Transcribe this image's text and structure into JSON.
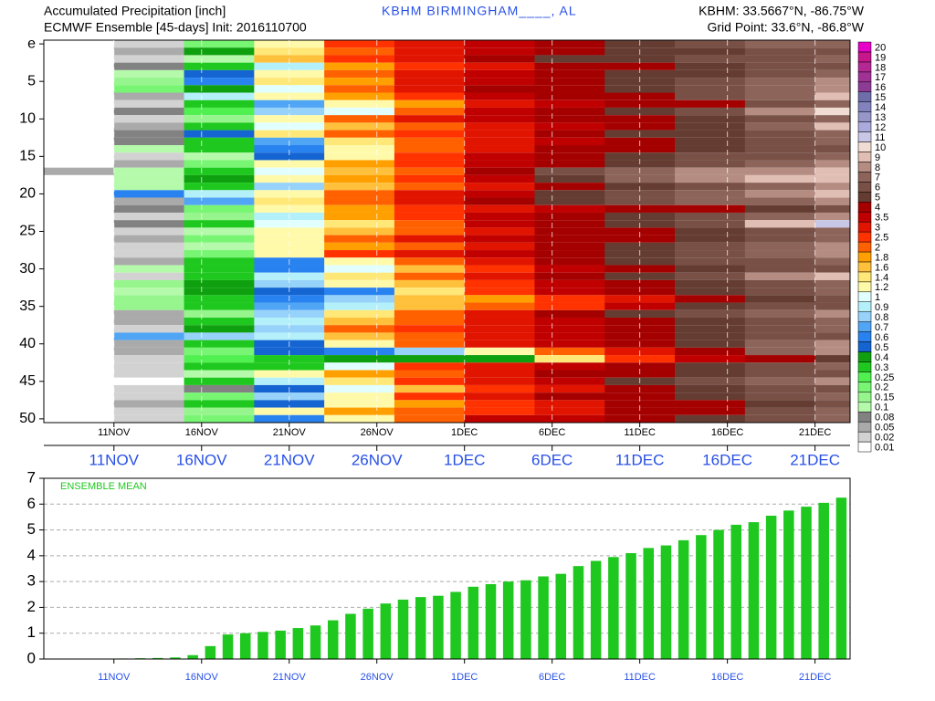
{
  "chart_data": [
    {
      "type": "heatmap",
      "title": "Accumulated Precipitation [inch]",
      "subtitle": "ECMWF Ensemble [45-days] Init: 2016110700",
      "station": "KBHM  BIRMINGHAM____, AL",
      "location": "KBHM: 33.5667°N, -86.75°W",
      "grid_point": "Grid Point: 33.6°N, -86.8°W",
      "xlim": [
        0,
        46
      ],
      "xticks": [
        {
          "value": 4,
          "label": "11NOV"
        },
        {
          "value": 9,
          "label": "16NOV"
        },
        {
          "value": 14,
          "label": "21NOV"
        },
        {
          "value": 19,
          "label": "26NOV"
        },
        {
          "value": 24,
          "label": "1DEC"
        },
        {
          "value": 29,
          "label": "6DEC"
        },
        {
          "value": 34,
          "label": "11DEC"
        },
        {
          "value": 39,
          "label": "16DEC"
        },
        {
          "value": 44,
          "label": "21DEC"
        }
      ],
      "yticks": [
        {
          "value": 0,
          "label": "e"
        },
        5,
        10,
        15,
        20,
        25,
        30,
        35,
        40,
        45,
        50
      ],
      "x": [
        0,
        4,
        8,
        12,
        16,
        20,
        24,
        28,
        32,
        36,
        40,
        44
      ],
      "values": [
        [
          0,
          0.02,
          0.2,
          1.2,
          2.6,
          3.2,
          3.8,
          4.5,
          5.5,
          6.5,
          7,
          7.5
        ],
        [
          0,
          0.05,
          0.4,
          1.4,
          2.2,
          3.1,
          3.6,
          4.2,
          5.1,
          5.5,
          6.2,
          6.8
        ],
        [
          0,
          0.02,
          0.1,
          1.6,
          2.8,
          3.3,
          4.1,
          5.2,
          5.8,
          6.3,
          6.6,
          7
        ],
        [
          0,
          0.08,
          0.3,
          0.9,
          1.8,
          2.6,
          3.4,
          4.1,
          4.8,
          5.3,
          6.1,
          6.6
        ],
        [
          0,
          0.1,
          0.5,
          1.3,
          2.4,
          3.2,
          3.8,
          4.3,
          5.1,
          5.8,
          6.4,
          7.2
        ],
        [
          0,
          0.15,
          0.6,
          1.4,
          1.9,
          3.1,
          3.7,
          4.6,
          5.3,
          6.2,
          7.2,
          8.1
        ],
        [
          0,
          0.2,
          0.4,
          1.1,
          2.1,
          3.2,
          4.1,
          4.6,
          5.4,
          6.5,
          7.4,
          8.3
        ],
        [
          0,
          0.05,
          0.9,
          1.2,
          1.8,
          2.7,
          3.6,
          4.2,
          4.7,
          6.1,
          7.3,
          9.2
        ],
        [
          0,
          0.02,
          0.3,
          0.7,
          1.2,
          1.9,
          3.1,
          3.8,
          4.3,
          4.9,
          6.4,
          7.5
        ],
        [
          0,
          0.08,
          0.25,
          0.8,
          1.1,
          2.1,
          3.5,
          4.2,
          5.6,
          6.2,
          8.4,
          10.5
        ],
        [
          0,
          0.02,
          0.15,
          1.3,
          2.3,
          3.3,
          3.9,
          4.2,
          4.6,
          5.4,
          6.3,
          7.1
        ],
        [
          0,
          0.05,
          0.3,
          1.1,
          1.7,
          2.4,
          3.1,
          3.8,
          4.4,
          5.2,
          7.1,
          9.5
        ],
        [
          0,
          0.08,
          0.5,
          1.4,
          2.1,
          2.8,
          3.4,
          4.1,
          5.1,
          5.9,
          6.7,
          7.4
        ],
        [
          0,
          0.08,
          0.3,
          0.7,
          1.4,
          2.4,
          3.2,
          3.8,
          4.4,
          5.1,
          6.2,
          7.2
        ],
        [
          0,
          0.1,
          0.3,
          0.6,
          1.3,
          2.2,
          3.3,
          4.1,
          4.8,
          5.5,
          6.2,
          6.9
        ],
        [
          0,
          0.02,
          0.1,
          0.5,
          1.3,
          2.6,
          3.6,
          4.2,
          5.6,
          6.1,
          6.7,
          7.5
        ],
        [
          0,
          0.05,
          0.2,
          1.2,
          1.8,
          2.7,
          3.6,
          4.5,
          5.3,
          6.1,
          7.1,
          8.2
        ],
        [
          0.05,
          0.1,
          0.3,
          1.1,
          1.6,
          2.3,
          4.1,
          6.2,
          7.4,
          8.2,
          8.7,
          9.2
        ],
        [
          0,
          0.1,
          0.4,
          1.3,
          1.9,
          2.6,
          3.7,
          5.2,
          7.1,
          8.3,
          9.3,
          9.8
        ],
        [
          0,
          0.1,
          0.3,
          0.8,
          1.6,
          2.4,
          3.2,
          4.3,
          5.2,
          6.5,
          7.2,
          8.1
        ],
        [
          0,
          0.6,
          0.9,
          1.3,
          2.1,
          3.2,
          3.8,
          5.1,
          6.2,
          7.1,
          8.2,
          9.1
        ],
        [
          0,
          0.05,
          0.7,
          1.5,
          2.2,
          3.3,
          4.2,
          5.3,
          6.1,
          7.2,
          7.8,
          8.3
        ],
        [
          0,
          0.08,
          0.2,
          1.2,
          1.8,
          2.6,
          3.1,
          3.6,
          4.1,
          4.6,
          5.8,
          6.4
        ],
        [
          0,
          0.02,
          0.15,
          0.9,
          1.9,
          2.8,
          3.6,
          4.3,
          5.2,
          6.3,
          7.1,
          8.4
        ],
        [
          0,
          0.08,
          0.3,
          1.1,
          1.5,
          2.2,
          3.6,
          4.2,
          5.3,
          6.2,
          9.5,
          11
        ],
        [
          0,
          0.02,
          0.1,
          1.3,
          1.7,
          2.1,
          3.4,
          4.1,
          4.8,
          5.4,
          6.3,
          7.1
        ],
        [
          0,
          0.05,
          0.2,
          1.2,
          2.3,
          3.1,
          3.7,
          4.2,
          4.8,
          5.6,
          6.5,
          7.3
        ],
        [
          0,
          0.02,
          0.1,
          1.2,
          1.9,
          2.3,
          3.4,
          4.3,
          5.2,
          6.3,
          7.4,
          8.2
        ],
        [
          0,
          0.02,
          0.2,
          1.3,
          2.6,
          3.1,
          3.7,
          4.4,
          5.1,
          6.2,
          7.4,
          8.1
        ],
        [
          0,
          0.05,
          0.3,
          0.6,
          1.2,
          2.4,
          3.1,
          4.2,
          5.1,
          6.2,
          6.8,
          7.6
        ],
        [
          0,
          0.1,
          0.35,
          0.6,
          1.0,
          1.6,
          2.9,
          3.7,
          4.5,
          5.2,
          6.1,
          6.8
        ],
        [
          0,
          0.02,
          0.3,
          0.9,
          1.5,
          2.4,
          3.3,
          4.2,
          5.1,
          6.8,
          8.2,
          9.3
        ],
        [
          0,
          0.15,
          0.4,
          0.8,
          1.2,
          1.7,
          2.8,
          3.6,
          4.4,
          5.4,
          6.3,
          7.2
        ],
        [
          0,
          0.1,
          0.45,
          0.5,
          0.6,
          1.4,
          2.6,
          3.7,
          4.3,
          5.1,
          6.4,
          7.3
        ],
        [
          0,
          0.15,
          0.3,
          0.6,
          0.8,
          1.6,
          1.9,
          2.6,
          3.2,
          4.3,
          5.1,
          6.2
        ],
        [
          0,
          0.15,
          0.3,
          0.7,
          0.9,
          1.7,
          2.1,
          2.8,
          3.6,
          5.2,
          6.1,
          6.8
        ],
        [
          0,
          0.05,
          0.15,
          0.8,
          1.5,
          2.2,
          3.2,
          4.3,
          5.1,
          6.1,
          7.3,
          8.1
        ],
        [
          0,
          0.05,
          0.35,
          0.9,
          1.6,
          2.3,
          3.2,
          3.9,
          4.5,
          5.3,
          6.2,
          7.4
        ],
        [
          0,
          0.02,
          0.4,
          0.8,
          2.2,
          2.6,
          3.3,
          3.9,
          4.7,
          5.3,
          6.2,
          7.1
        ],
        [
          0,
          0.7,
          0.8,
          0.9,
          1.6,
          2.4,
          3.3,
          3.8,
          4.6,
          5.4,
          6.2,
          6.9
        ],
        [
          0,
          0.05,
          0.3,
          0.5,
          1.2,
          2.4,
          3.1,
          3.9,
          4.8,
          5.6,
          7.2,
          8.1
        ],
        [
          0,
          0.05,
          0.2,
          0.5,
          0.6,
          0.8,
          1.2,
          2.1,
          3.2,
          4.5,
          7.1,
          8.2
        ],
        [
          0,
          0.02,
          0.25,
          0.3,
          0.4,
          0.4,
          0.4,
          1.5,
          2.6,
          3.6,
          4.4,
          5.3
        ],
        [
          0,
          0.02,
          0.3,
          0.3,
          1.1,
          2.5,
          3.1,
          3.8,
          4.6,
          5.3,
          6.2,
          7.2
        ],
        [
          0,
          0.02,
          0.1,
          1.2,
          1.8,
          2.4,
          3.4,
          4.1,
          4.8,
          5.4,
          6.2,
          6.8
        ],
        [
          0,
          0.01,
          0.3,
          0.9,
          1.5,
          2.5,
          3.2,
          3.8,
          5.1,
          6.2,
          7.3,
          8.2
        ],
        [
          0,
          0.02,
          0.08,
          0.5,
          1.1,
          1.6,
          2.8,
          3.4,
          4.2,
          5.3,
          6.1,
          6.9
        ],
        [
          0,
          0.02,
          0.2,
          0.8,
          1.3,
          2.6,
          3.3,
          4.1,
          4.8,
          5.6,
          6.4,
          7.2
        ],
        [
          0,
          0.05,
          0.3,
          0.5,
          1.3,
          1.9,
          2.6,
          3.3,
          4.1,
          4.6,
          5.5,
          6.2
        ],
        [
          0,
          0.02,
          0.15,
          1.2,
          1.9,
          2.3,
          2.9,
          3.4,
          4.2,
          4.9,
          6.2,
          7.1
        ],
        [
          0,
          0.02,
          0.2,
          0.6,
          1.3,
          2.2,
          3.5,
          3.9,
          4.4,
          5.1,
          6.3,
          7.2
        ]
      ],
      "legend": {
        "levels": [
          0.01,
          0.02,
          0.05,
          0.08,
          0.1,
          0.15,
          0.2,
          0.25,
          0.3,
          0.4,
          0.5,
          0.6,
          0.7,
          0.8,
          0.9,
          1,
          1.2,
          1.4,
          1.6,
          1.8,
          2,
          2.5,
          3,
          3.5,
          4,
          5,
          6,
          7,
          8,
          9,
          10,
          11,
          12,
          13,
          14,
          15,
          16,
          17,
          18,
          19,
          20
        ],
        "colors": [
          "#ffffff",
          "#d2d2d2",
          "#aaaaaa",
          "#828282",
          "#b4faaa",
          "#96f58c",
          "#78f573",
          "#50f050",
          "#1ec81e",
          "#0fa00f",
          "#1464d2",
          "#2882f0",
          "#50a5f5",
          "#96d2fa",
          "#b4f0fa",
          "#e1ffff",
          "#fffaaa",
          "#ffe878",
          "#ffc03c",
          "#ffa000",
          "#ff6000",
          "#ff3200",
          "#e11400",
          "#c00000",
          "#a50000",
          "#643c32",
          "#785046",
          "#8c645a",
          "#b48c82",
          "#e1beb4",
          "#f0dcd2",
          "#c8c8e6",
          "#aaaadc",
          "#9696c8",
          "#8282be",
          "#6e6eaa",
          "#8c3c96",
          "#a03296",
          "#b42896",
          "#c8168c",
          "#e600c8"
        ]
      }
    },
    {
      "type": "bar",
      "title": "ENSEMBLE MEAN",
      "color": "#1ec81e",
      "xlim": [
        0,
        46
      ],
      "xticks": [
        {
          "value": 4,
          "label": "11NOV"
        },
        {
          "value": 9,
          "label": "16NOV"
        },
        {
          "value": 14,
          "label": "21NOV"
        },
        {
          "value": 19,
          "label": "26NOV"
        },
        {
          "value": 24,
          "label": "1DEC"
        },
        {
          "value": 29,
          "label": "6DEC"
        },
        {
          "value": 34,
          "label": "11DEC"
        },
        {
          "value": 39,
          "label": "16DEC"
        },
        {
          "value": 44,
          "label": "21DEC"
        }
      ],
      "ylim": [
        0,
        7
      ],
      "yticks": [
        0,
        1,
        2,
        3,
        4,
        5,
        6,
        7
      ],
      "grid": true,
      "x": [
        0,
        1,
        2,
        3,
        4,
        5,
        6,
        7,
        8,
        9,
        10,
        11,
        12,
        13,
        14,
        15,
        16,
        17,
        18,
        19,
        20,
        21,
        22,
        23,
        24,
        25,
        26,
        27,
        28,
        29,
        30,
        31,
        32,
        33,
        34,
        35,
        36,
        37,
        38,
        39,
        40,
        41,
        42,
        43,
        44,
        45
      ],
      "values": [
        0,
        0,
        0,
        0.01,
        0.02,
        0.03,
        0.04,
        0.06,
        0.15,
        0.5,
        0.95,
        1.0,
        1.05,
        1.1,
        1.2,
        1.3,
        1.5,
        1.75,
        1.95,
        2.15,
        2.3,
        2.4,
        2.45,
        2.6,
        2.8,
        2.9,
        3.0,
        3.05,
        3.2,
        3.3,
        3.6,
        3.8,
        3.95,
        4.1,
        4.3,
        4.4,
        4.6,
        4.8,
        5.0,
        5.2,
        5.3,
        5.55,
        5.75,
        5.9,
        6.05,
        6.25
      ]
    }
  ]
}
